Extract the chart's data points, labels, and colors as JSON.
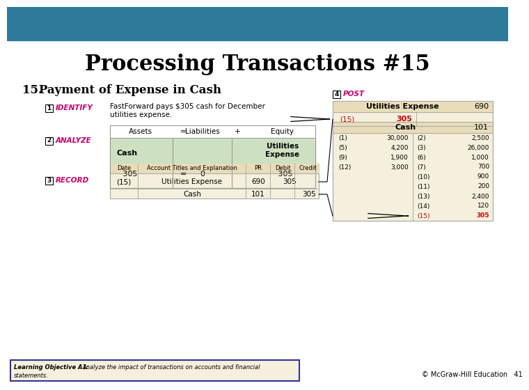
{
  "title": "Processing Transactions #15",
  "title_fontsize": 22,
  "header_color": "#2d7a9a",
  "section_number": "15.",
  "section_title": "Payment of Expense in Cash",
  "step1_label": "1",
  "step1_name": "IDENTIFY",
  "step1_text": "FastForward pays $305 cash for December\nutilities expense.",
  "step2_label": "2",
  "step2_name": "ANALYZE",
  "step3_label": "3",
  "step3_name": "RECORD",
  "step4_label": "4",
  "step4_name": "POST",
  "analyze_headers": [
    "Assets",
    "=",
    "Liabilities",
    "+",
    "Equity"
  ],
  "record_headers": [
    "Date",
    "Account Titles and Explanation",
    "PR",
    "Debit",
    "Credit"
  ],
  "record_rows": [
    [
      "(15)",
      "Utilities Expense",
      "690",
      "305",
      ""
    ],
    [
      "",
      "Cash",
      "101",
      "",
      "305"
    ]
  ],
  "util_exp_title": "Utilities Expense",
  "util_exp_number": "690",
  "cash_title": "Cash",
  "cash_number": "101",
  "cash_debit": [
    [
      "(1)",
      "30,000"
    ],
    [
      "(5)",
      "4,200"
    ],
    [
      "(9)",
      "1,900"
    ],
    [
      "(12)",
      "3,000"
    ]
  ],
  "cash_credit": [
    [
      "(2)",
      "2,500"
    ],
    [
      "(3)",
      "26,000"
    ],
    [
      "(6)",
      "1,000"
    ],
    [
      "(7)",
      "700"
    ],
    [
      "(10)",
      "900"
    ],
    [
      "(11)",
      "200"
    ],
    [
      "(13)",
      "2,400"
    ],
    [
      "(14)",
      "120"
    ],
    [
      "(15)",
      "305"
    ]
  ],
  "red_color": "#cc0000",
  "pink_label_color": "#cc0066",
  "green_bg": "#cee0c2",
  "tan_bg": "#f5f0dc",
  "header_tan": "#e8ddb8",
  "footer_text_bold": "Learning Objective A1:",
  "footer_text_normal": " Analyze the impact of transactions on accounts and financial\nstatements.",
  "copyright_text": "© McGraw-Hill Education   41",
  "bg_color": "#ffffff"
}
